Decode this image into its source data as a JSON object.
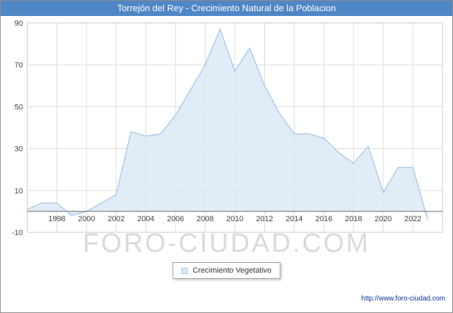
{
  "header": {
    "title": "Torrejón del Rey - Crecimiento Natural de la Poblacion",
    "bar_color": "#4f87c5"
  },
  "chart_data": {
    "type": "area",
    "title": "Torrejón del Rey - Crecimiento Natural de la Poblacion",
    "xlabel": "",
    "ylabel": "",
    "xlim": [
      1996,
      2024
    ],
    "ylim": [
      -10,
      90
    ],
    "yticks": [
      90,
      70,
      50,
      30,
      10,
      -10
    ],
    "xticks": [
      1998,
      2000,
      2002,
      2004,
      2006,
      2008,
      2010,
      2012,
      2014,
      2016,
      2018,
      2020,
      2022
    ],
    "grid": true,
    "legend_position": "bottom",
    "fill_color": "#dbe9f7",
    "line_color": "#9dc3e6",
    "zero_line_color": "#666666",
    "series": [
      {
        "name": "Crecimiento Vegetativo",
        "x": [
          1996,
          1997,
          1998,
          1999,
          2000,
          2001,
          2002,
          2003,
          2004,
          2005,
          2006,
          2007,
          2008,
          2009,
          2010,
          2011,
          2012,
          2013,
          2014,
          2015,
          2016,
          2017,
          2018,
          2019,
          2020,
          2021,
          2022,
          2023
        ],
        "values": [
          1,
          4,
          4,
          -2,
          0,
          4,
          8,
          38,
          36,
          37,
          46,
          58,
          70,
          87,
          67,
          78,
          60,
          47,
          37,
          37,
          35,
          28,
          23,
          31,
          9,
          21,
          21,
          -4
        ]
      }
    ]
  },
  "legend": {
    "label": "Crecimiento Vegetativo"
  },
  "watermark": "FORO-CIUDAD.COM",
  "footer": {
    "url": "http://www.foro-ciudad.com"
  }
}
